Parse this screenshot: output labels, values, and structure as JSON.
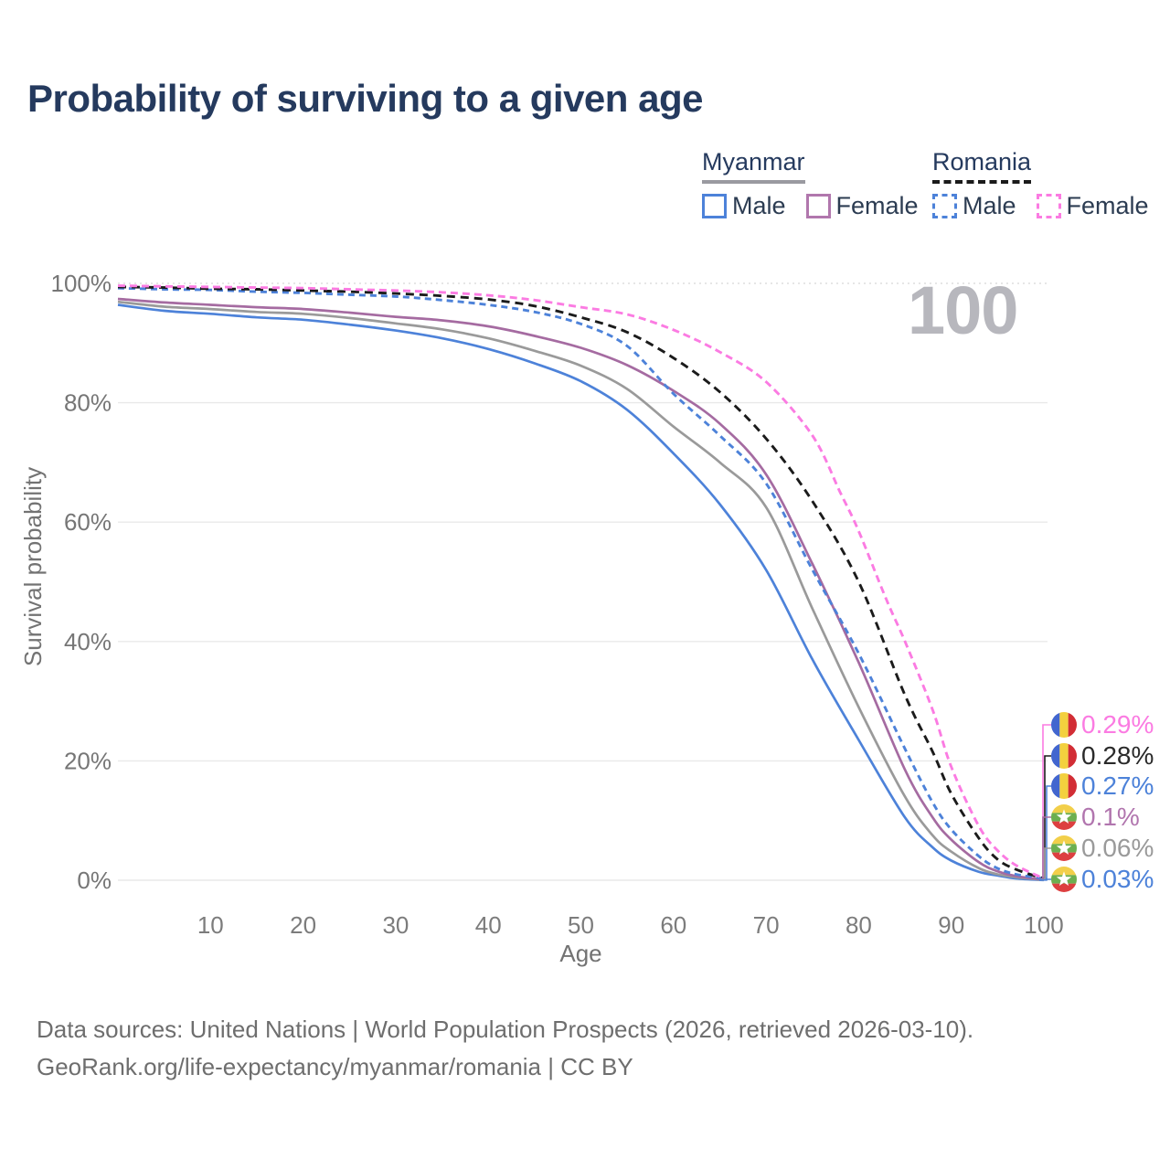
{
  "title": "Probability of surviving to a given age",
  "watermark": "100",
  "legend": {
    "groups": [
      {
        "name": "Myanmar",
        "line_style": "solid",
        "line_color": "#9a9aa0",
        "items": [
          {
            "label": "Male",
            "color": "#4d82d9",
            "dashed": false
          },
          {
            "label": "Female",
            "color": "#b177ad",
            "dashed": false
          }
        ]
      },
      {
        "name": "Romania",
        "line_style": "dashed",
        "line_color": "#1b1b1b",
        "items": [
          {
            "label": "Male",
            "color": "#4d82d9",
            "dashed": true
          },
          {
            "label": "Female",
            "color": "#fb7be2",
            "dashed": true
          }
        ]
      }
    ]
  },
  "chart_data": {
    "type": "line",
    "title": "Probability of surviving to a given age",
    "xlabel": "Age",
    "ylabel": "Survival probability",
    "xlim": [
      0,
      100
    ],
    "ylim": [
      0,
      100
    ],
    "x_ticks": [
      10,
      20,
      30,
      40,
      50,
      60,
      70,
      80,
      90,
      100
    ],
    "y_ticks": [
      {
        "v": 0,
        "label": "0%"
      },
      {
        "v": 20,
        "label": "20%"
      },
      {
        "v": 40,
        "label": "40%"
      },
      {
        "v": 60,
        "label": "60%"
      },
      {
        "v": 80,
        "label": "80%"
      },
      {
        "v": 100,
        "label": "100%"
      }
    ],
    "grid": true,
    "legend_position": "top-right",
    "series": [
      {
        "id": "romania-female",
        "country": "Romania",
        "sex": "Female",
        "color": "#fb7be2",
        "dash": "8 5",
        "end_value_label": "0.29%",
        "points": [
          [
            0,
            99.6
          ],
          [
            5,
            99.5
          ],
          [
            10,
            99.4
          ],
          [
            15,
            99.3
          ],
          [
            20,
            99.2
          ],
          [
            25,
            99.0
          ],
          [
            30,
            98.8
          ],
          [
            35,
            98.5
          ],
          [
            40,
            98.0
          ],
          [
            45,
            97.2
          ],
          [
            50,
            96.0
          ],
          [
            55,
            94.8
          ],
          [
            60,
            92.2
          ],
          [
            65,
            88.5
          ],
          [
            70,
            83.5
          ],
          [
            75,
            74.5
          ],
          [
            78,
            65.0
          ],
          [
            80,
            58.5
          ],
          [
            83,
            47.0
          ],
          [
            85,
            40.0
          ],
          [
            88,
            28.5
          ],
          [
            90,
            19.0
          ],
          [
            93,
            9.0
          ],
          [
            95,
            5.0
          ],
          [
            97,
            2.5
          ],
          [
            100,
            0.29
          ]
        ]
      },
      {
        "id": "romania-combined",
        "country": "Romania",
        "sex": "Both",
        "color": "#1b1b1b",
        "dash": "9 6",
        "end_value_label": "0.28%",
        "points": [
          [
            0,
            99.4
          ],
          [
            5,
            99.3
          ],
          [
            10,
            99.1
          ],
          [
            15,
            99.0
          ],
          [
            20,
            98.8
          ],
          [
            25,
            98.6
          ],
          [
            30,
            98.3
          ],
          [
            35,
            97.9
          ],
          [
            40,
            97.3
          ],
          [
            45,
            96.2
          ],
          [
            50,
            94.3
          ],
          [
            55,
            91.8
          ],
          [
            60,
            87.5
          ],
          [
            65,
            81.8
          ],
          [
            70,
            74.0
          ],
          [
            75,
            63.5
          ],
          [
            80,
            50.0
          ],
          [
            85,
            31.0
          ],
          [
            88,
            21.5
          ],
          [
            90,
            14.5
          ],
          [
            93,
            7.0
          ],
          [
            95,
            3.5
          ],
          [
            97,
            1.8
          ],
          [
            100,
            0.28
          ]
        ]
      },
      {
        "id": "romania-male",
        "country": "Romania",
        "sex": "Male",
        "color": "#4d82d9",
        "dash": "7 5",
        "end_value_label": "0.27%",
        "points": [
          [
            0,
            99.2
          ],
          [
            5,
            99.0
          ],
          [
            10,
            98.9
          ],
          [
            15,
            98.6
          ],
          [
            20,
            98.4
          ],
          [
            25,
            98.1
          ],
          [
            30,
            97.8
          ],
          [
            35,
            97.2
          ],
          [
            40,
            96.4
          ],
          [
            45,
            95.2
          ],
          [
            50,
            93.2
          ],
          [
            55,
            89.5
          ],
          [
            60,
            81.5
          ],
          [
            65,
            74.5
          ],
          [
            70,
            66.5
          ],
          [
            75,
            52.0
          ],
          [
            80,
            38.0
          ],
          [
            85,
            22.0
          ],
          [
            88,
            13.0
          ],
          [
            90,
            8.5
          ],
          [
            93,
            4.0
          ],
          [
            95,
            2.0
          ],
          [
            97,
            1.0
          ],
          [
            100,
            0.27
          ]
        ]
      },
      {
        "id": "myanmar-female",
        "country": "Myanmar",
        "sex": "Female",
        "color": "#a56ba1",
        "dash": null,
        "end_value_label": "0.1%",
        "points": [
          [
            0,
            97.4
          ],
          [
            5,
            96.8
          ],
          [
            10,
            96.4
          ],
          [
            15,
            96.0
          ],
          [
            20,
            95.7
          ],
          [
            25,
            95.1
          ],
          [
            30,
            94.4
          ],
          [
            35,
            93.8
          ],
          [
            40,
            92.8
          ],
          [
            45,
            91.2
          ],
          [
            50,
            89.2
          ],
          [
            55,
            86.3
          ],
          [
            60,
            82.0
          ],
          [
            65,
            76.5
          ],
          [
            70,
            68.0
          ],
          [
            75,
            53.0
          ],
          [
            80,
            36.5
          ],
          [
            85,
            18.5
          ],
          [
            88,
            10.5
          ],
          [
            90,
            6.8
          ],
          [
            93,
            3.0
          ],
          [
            95,
            1.5
          ],
          [
            97,
            0.7
          ],
          [
            100,
            0.1
          ]
        ]
      },
      {
        "id": "myanmar-combined",
        "country": "Myanmar",
        "sex": "Both",
        "color": "#9a9a9a",
        "dash": null,
        "end_value_label": "0.06%",
        "points": [
          [
            0,
            96.9
          ],
          [
            5,
            96.1
          ],
          [
            10,
            95.7
          ],
          [
            15,
            95.2
          ],
          [
            20,
            94.9
          ],
          [
            25,
            94.2
          ],
          [
            30,
            93.3
          ],
          [
            35,
            92.3
          ],
          [
            40,
            90.8
          ],
          [
            45,
            88.7
          ],
          [
            50,
            86.2
          ],
          [
            55,
            82.3
          ],
          [
            60,
            76.0
          ],
          [
            65,
            70.0
          ],
          [
            70,
            62.5
          ],
          [
            75,
            45.5
          ],
          [
            80,
            29.0
          ],
          [
            85,
            14.0
          ],
          [
            88,
            7.5
          ],
          [
            90,
            4.8
          ],
          [
            93,
            2.0
          ],
          [
            95,
            1.0
          ],
          [
            97,
            0.5
          ],
          [
            100,
            0.06
          ]
        ]
      },
      {
        "id": "myanmar-male",
        "country": "Myanmar",
        "sex": "Male",
        "color": "#4d82d9",
        "dash": null,
        "end_value_label": "0.03%",
        "points": [
          [
            0,
            96.4
          ],
          [
            5,
            95.4
          ],
          [
            10,
            94.9
          ],
          [
            15,
            94.3
          ],
          [
            20,
            93.9
          ],
          [
            25,
            93.1
          ],
          [
            30,
            92.1
          ],
          [
            35,
            90.8
          ],
          [
            40,
            89.0
          ],
          [
            45,
            86.6
          ],
          [
            50,
            83.6
          ],
          [
            55,
            78.8
          ],
          [
            60,
            71.5
          ],
          [
            65,
            63.0
          ],
          [
            70,
            52.0
          ],
          [
            75,
            37.0
          ],
          [
            80,
            23.5
          ],
          [
            85,
            10.5
          ],
          [
            88,
            5.5
          ],
          [
            90,
            3.3
          ],
          [
            93,
            1.4
          ],
          [
            95,
            0.8
          ],
          [
            97,
            0.3
          ],
          [
            100,
            0.03
          ]
        ]
      }
    ]
  },
  "end_labels": [
    {
      "value": "0.29%",
      "color": "#fb7be2",
      "flag": "romania"
    },
    {
      "value": "0.28%",
      "color": "#2a2a2a",
      "flag": "romania"
    },
    {
      "value": "0.27%",
      "color": "#4d82d9",
      "flag": "romania"
    },
    {
      "value": "0.1%",
      "color": "#b175ae",
      "flag": "myanmar"
    },
    {
      "value": "0.06%",
      "color": "#9a9a9a",
      "flag": "myanmar"
    },
    {
      "value": "0.03%",
      "color": "#4d82d9",
      "flag": "myanmar"
    }
  ],
  "flags": {
    "romania": {
      "stripes": [
        "#4266cf",
        "#f3d03e",
        "#d22d35"
      ]
    },
    "myanmar": {
      "stripes": [
        "#f2cf4a",
        "#6caf50",
        "#dd3f40"
      ],
      "star": "#ffffff"
    }
  },
  "source": {
    "line1": "Data sources: United Nations | World Population Prospects (2026, retrieved 2026-03-10).",
    "line2": "GeoRank.org/life-expectancy/myanmar/romania | CC BY"
  }
}
